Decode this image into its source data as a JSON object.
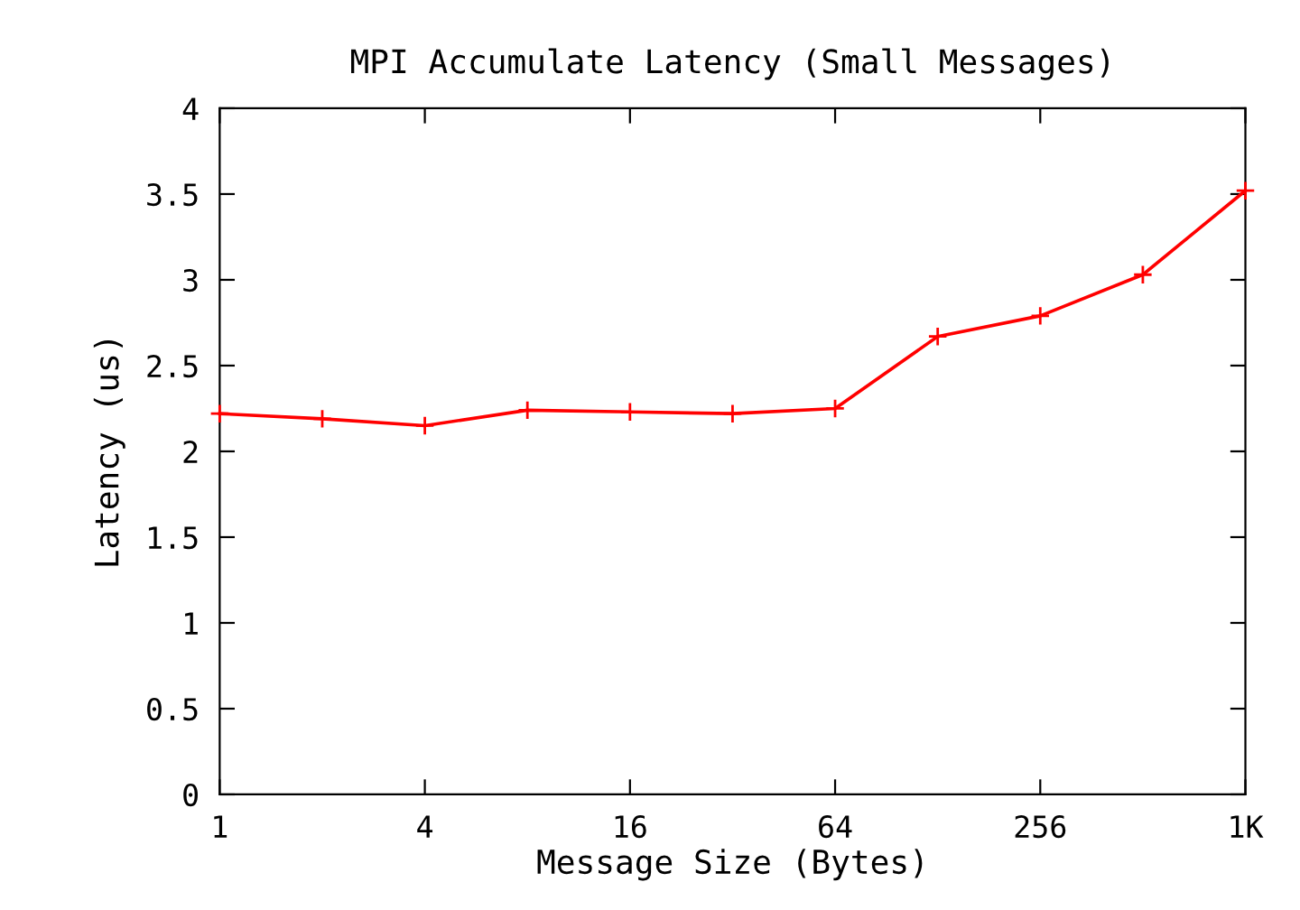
{
  "chart_data": {
    "type": "line",
    "title": "MPI Accumulate Latency (Small Messages)",
    "xlabel": "Message Size (Bytes)",
    "ylabel": "Latency (us)",
    "x": [
      1,
      2,
      4,
      8,
      16,
      32,
      64,
      128,
      256,
      512,
      1024
    ],
    "series": [
      {
        "color": "#ff0000",
        "values": [
          2.22,
          2.19,
          2.15,
          2.24,
          2.23,
          2.22,
          2.25,
          2.67,
          2.79,
          3.03,
          3.52
        ]
      }
    ],
    "log": "x",
    "xlim": [
      1,
      1024
    ],
    "xticks": [
      1,
      4,
      16,
      64,
      256,
      {
        "value": 1024,
        "label": "1K"
      }
    ],
    "ylim": [
      0,
      4
    ],
    "yticks": [
      0,
      {
        "value": 0.5,
        "label": "0.5"
      },
      1,
      {
        "value": 1.5,
        "label": "1.5"
      },
      2,
      {
        "value": 2.5,
        "label": "2.5"
      },
      3,
      {
        "value": 3.5,
        "label": "3.5"
      },
      4
    ],
    "grid": false,
    "marker": "cross",
    "line_style": "solid"
  }
}
